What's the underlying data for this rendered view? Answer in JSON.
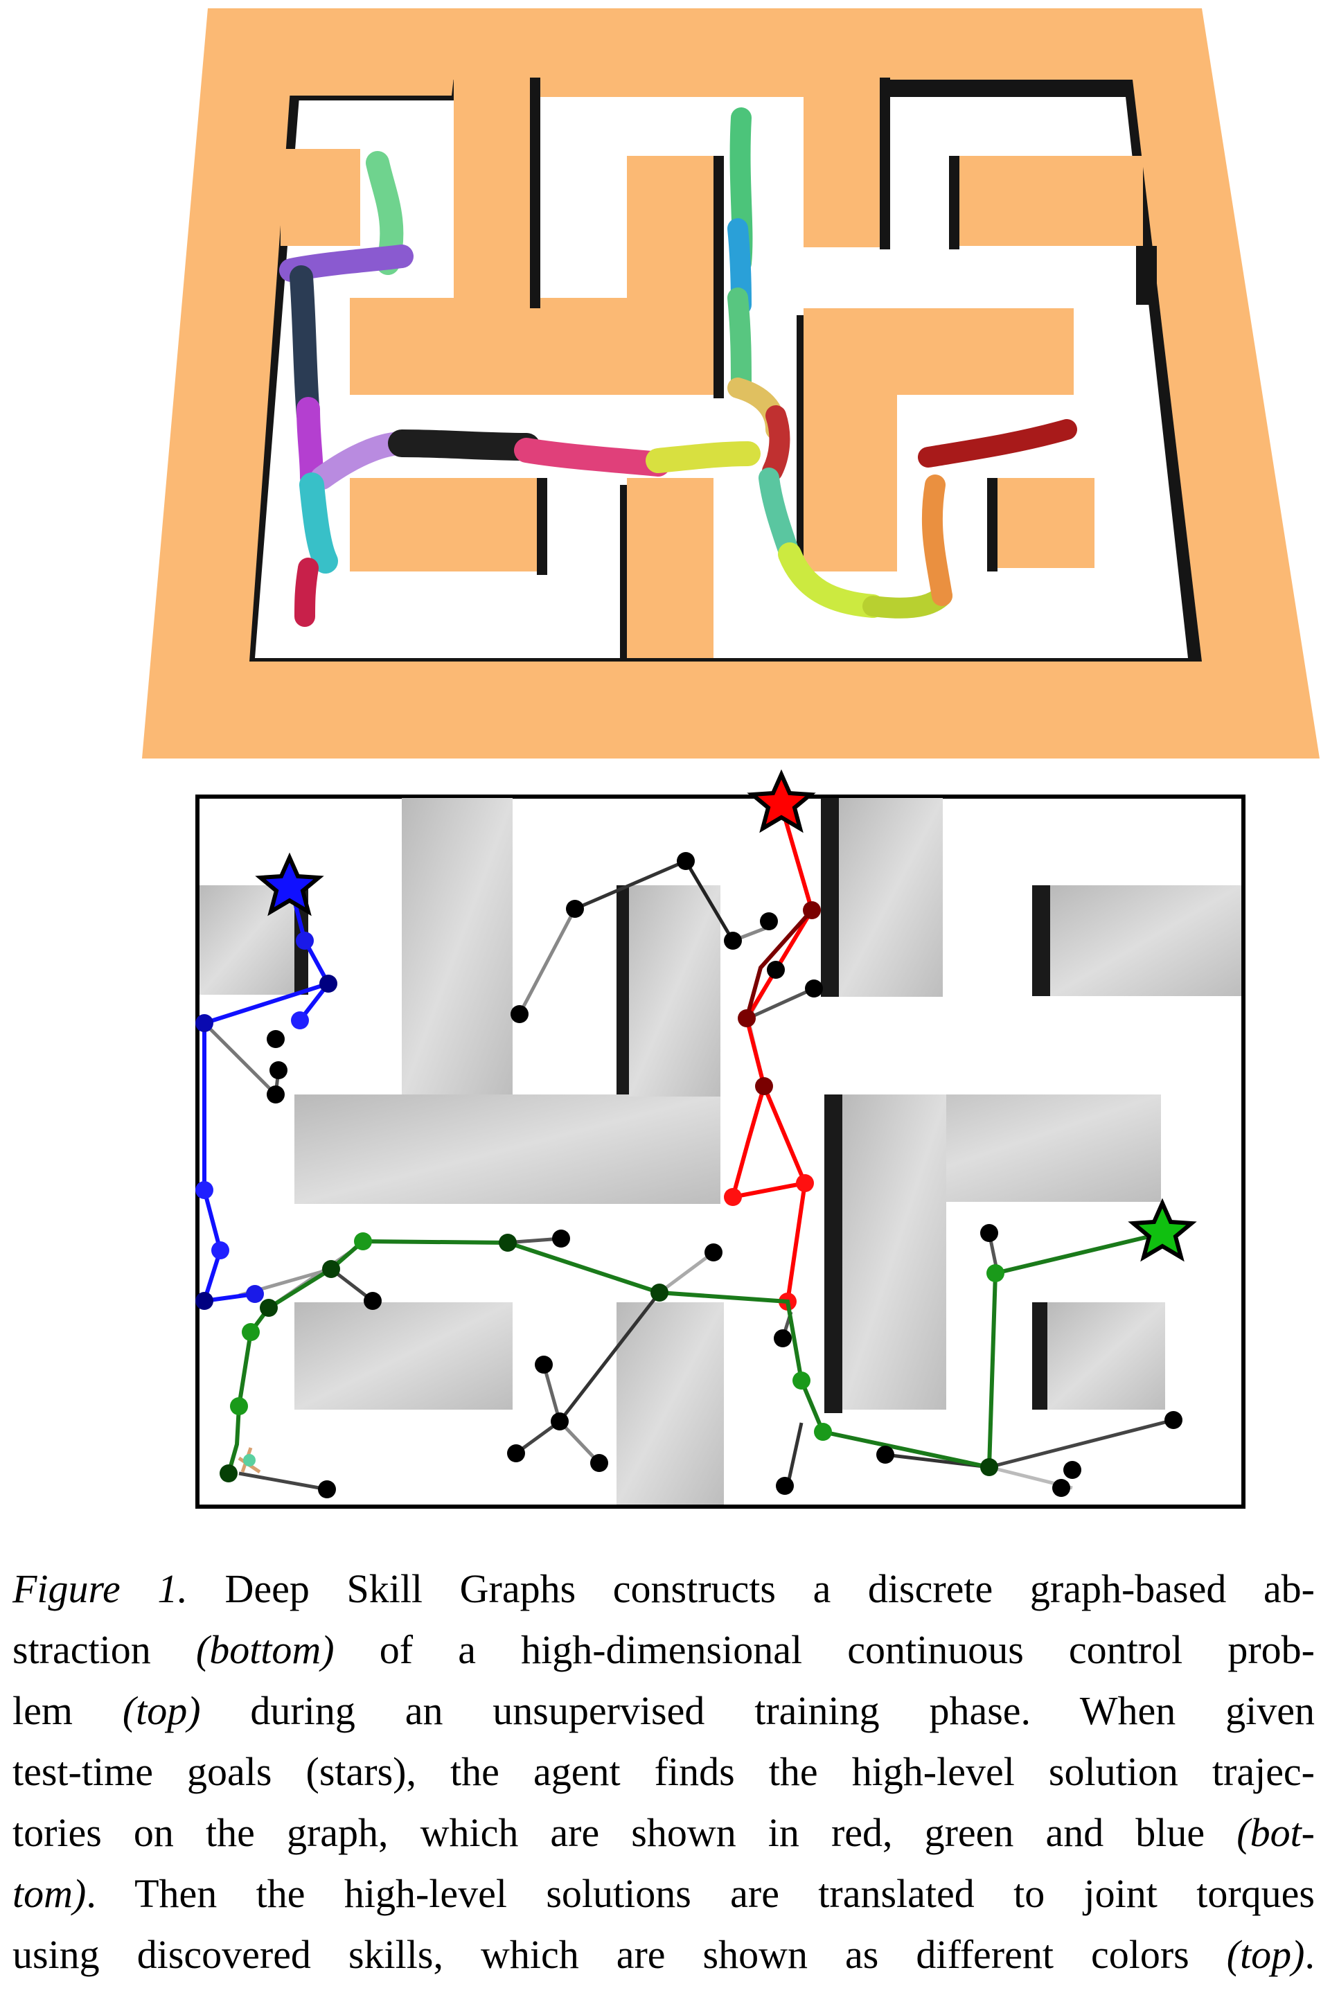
{
  "caption": {
    "label": "Figure 1.",
    "lines": [
      "Deep Skill Graphs constructs a discrete graph-based ab-",
      "straction (bottom) of a high-dimensional continuous control prob-",
      "lem (top) during an unsupervised training phase.  When given",
      "test-time goals (stars), the agent finds the high-level solution trajec-",
      "tories on the graph, which are shown in red, green and blue (bot-",
      "tom). Then the high-level solutions are translated to joint torques",
      "using discovered skills, which are shown as different colors (top)."
    ]
  },
  "colors": {
    "maze_wall": "#fbb974",
    "maze_shadow": "#1c1c1c",
    "grid_wall": "#c9c9c9",
    "red_path": "#ff0000",
    "green_path": "#1a8a1a",
    "blue_path": "#1010ff"
  }
}
